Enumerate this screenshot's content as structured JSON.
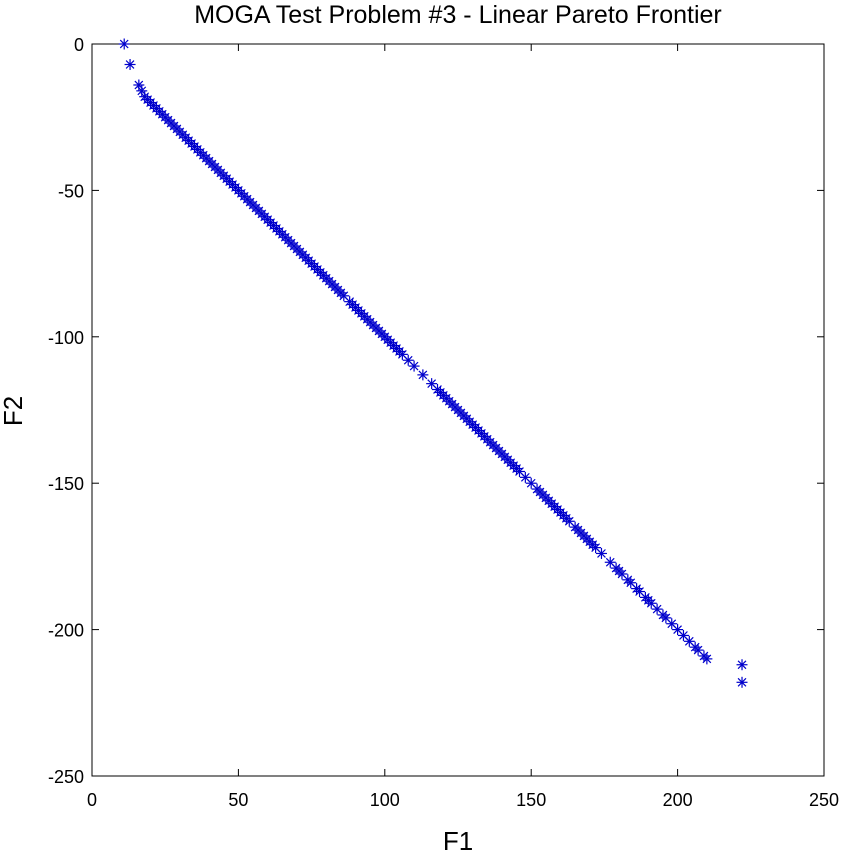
{
  "chart_data": {
    "type": "scatter",
    "title": "MOGA Test Problem #3 - Linear Pareto Frontier",
    "xlabel": "F1",
    "ylabel": "F2",
    "xlim": [
      0,
      250
    ],
    "ylim": [
      -250,
      0
    ],
    "xticks": [
      0,
      50,
      100,
      150,
      200,
      250
    ],
    "yticks": [
      0,
      -50,
      -100,
      -150,
      -200,
      -250
    ],
    "marker": "asterisk",
    "marker_color": "#0000cc",
    "grid": false,
    "legend": "none",
    "series": [
      {
        "x": [
          11,
          13,
          16,
          17,
          18,
          19,
          20,
          21,
          22,
          23,
          24,
          25,
          26,
          27,
          28,
          29,
          30,
          31,
          32,
          33,
          34,
          35,
          36,
          37,
          38,
          39,
          40,
          41,
          42,
          43,
          44,
          45,
          46,
          47,
          48,
          49,
          50,
          51,
          52,
          53,
          54,
          55,
          56,
          57,
          58,
          59,
          60,
          61,
          62,
          63,
          64,
          65,
          66,
          67,
          68,
          69,
          70,
          71,
          72,
          73,
          74,
          75,
          76,
          77,
          78,
          79,
          80,
          81,
          82,
          83,
          84,
          85,
          86,
          88,
          89,
          90,
          91,
          92,
          93,
          94,
          95,
          96,
          97,
          98,
          99,
          100,
          101,
          102,
          103,
          104,
          105,
          106,
          108,
          110,
          113,
          116,
          118,
          119,
          120,
          121,
          122,
          123,
          124,
          125,
          126,
          127,
          128,
          129,
          130,
          131,
          132,
          133,
          134,
          135,
          136,
          137,
          138,
          139,
          140,
          141,
          142,
          143,
          144,
          145,
          146,
          148,
          150,
          152,
          153,
          154,
          155,
          156,
          157,
          158,
          159,
          160,
          161,
          162,
          163,
          165,
          166,
          167,
          168,
          169,
          170,
          171,
          172,
          174,
          177,
          179,
          180,
          181,
          183,
          184,
          186,
          187,
          189,
          190,
          191,
          193,
          195,
          196,
          198,
          200,
          202,
          204,
          206,
          207,
          209,
          210,
          222,
          222
        ],
        "y": [
          0,
          -7,
          -14,
          -16,
          -18,
          -19,
          -20,
          -21,
          -22,
          -23,
          -24,
          -25,
          -26,
          -27,
          -28,
          -29,
          -30,
          -31,
          -32,
          -33,
          -34,
          -35,
          -36,
          -37,
          -38,
          -39,
          -40,
          -41,
          -42,
          -43,
          -44,
          -45,
          -46,
          -47,
          -48,
          -49,
          -50,
          -51,
          -52,
          -53,
          -54,
          -55,
          -56,
          -57,
          -58,
          -59,
          -60,
          -61,
          -62,
          -63,
          -64,
          -65,
          -66,
          -67,
          -68,
          -69,
          -70,
          -71,
          -72,
          -73,
          -74,
          -75,
          -76,
          -77,
          -78,
          -79,
          -80,
          -81,
          -82,
          -83,
          -84,
          -85,
          -86,
          -88,
          -89,
          -90,
          -91,
          -92,
          -93,
          -94,
          -95,
          -96,
          -97,
          -98,
          -99,
          -100,
          -101,
          -102,
          -103,
          -104,
          -105,
          -106,
          -108,
          -110,
          -113,
          -116,
          -118,
          -119,
          -120,
          -121,
          -122,
          -123,
          -124,
          -125,
          -126,
          -127,
          -128,
          -129,
          -130,
          -131,
          -132,
          -133,
          -134,
          -135,
          -136,
          -137,
          -138,
          -139,
          -140,
          -141,
          -142,
          -143,
          -144,
          -145,
          -146,
          -148,
          -150,
          -152,
          -153,
          -154,
          -155,
          -156,
          -157,
          -158,
          -159,
          -160,
          -161,
          -162,
          -163,
          -165,
          -166,
          -167,
          -168,
          -169,
          -170,
          -171,
          -172,
          -174,
          -177,
          -179,
          -180,
          -181,
          -183,
          -184,
          -186,
          -187,
          -189,
          -190,
          -191,
          -193,
          -195,
          -196,
          -198,
          -200,
          -202,
          -204,
          -206,
          -207,
          -209,
          -210,
          -212,
          -218
        ]
      }
    ]
  }
}
